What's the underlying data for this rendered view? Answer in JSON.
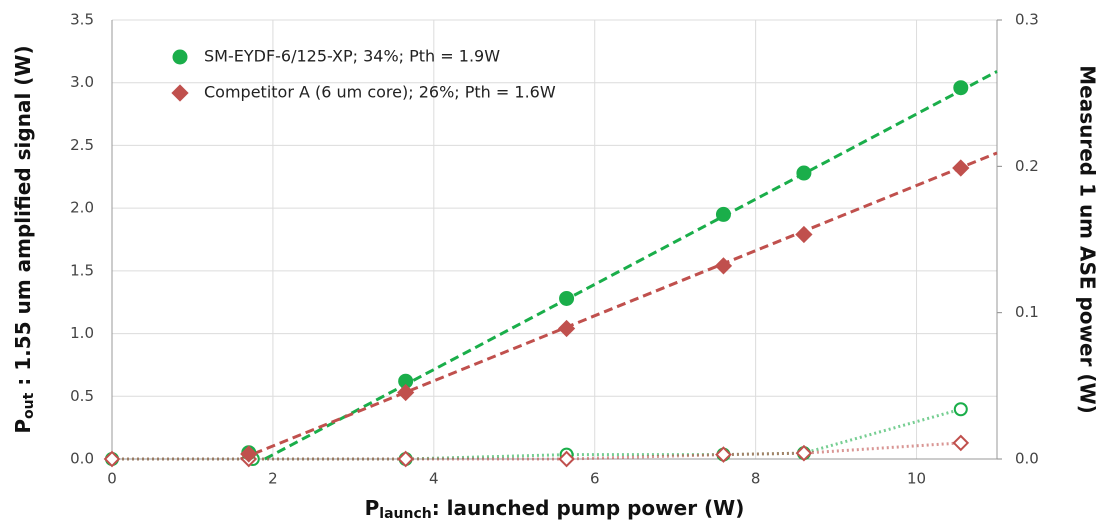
{
  "chart_data": {
    "type": "scatter",
    "xlabel": {
      "main": "P",
      "sub": "launch",
      "rest": ": launched pump power (W)"
    },
    "ylabel": {
      "main": "P",
      "sub": "out",
      "rest": " : 1.55 um amplified signal (W)"
    },
    "y2label": "Measured 1 um ASE power (W)",
    "xlim": [
      0,
      11
    ],
    "xticks": [
      0,
      2,
      4,
      6,
      8,
      10
    ],
    "ylim": [
      0,
      3.5
    ],
    "yticks": [
      {
        "value": 0,
        "label": "0.0"
      },
      0.5,
      {
        "value": 1,
        "label": "1.0"
      },
      1.5,
      {
        "value": 2,
        "label": "2.0"
      },
      2.5,
      {
        "value": 3,
        "label": "3.0"
      },
      3.5
    ],
    "y2lim": [
      0,
      0.3
    ],
    "y2ticks": [
      {
        "value": 0,
        "label": "0.0"
      },
      0.1,
      0.2,
      0.3
    ],
    "grid": true,
    "legend": "top-left",
    "series": [
      {
        "name": "SM-EYDF-6/125-XP; 34%; Pth = 1.9W",
        "color": "#1aae4a",
        "marker": "circle",
        "x": [
          1.7,
          3.65,
          5.65,
          7.6,
          8.6,
          10.55
        ],
        "values": [
          0.05,
          0.62,
          1.28,
          1.95,
          2.28,
          2.96
        ]
      },
      {
        "name": "Competitor A (6 um core); 26%; Pth = 1.6W",
        "color": "#c0504d",
        "marker": "diamond",
        "x": [
          1.7,
          3.65,
          5.65,
          7.6,
          8.6,
          10.55
        ],
        "values": [
          0.04,
          0.53,
          1.04,
          1.54,
          1.79,
          2.32
        ]
      }
    ],
    "trendlines": [
      {
        "color": "#1aae4a",
        "x": [
          1.9,
          11
        ],
        "values": [
          0,
          3.09
        ]
      },
      {
        "color": "#c0504d",
        "x": [
          1.6,
          11
        ],
        "values": [
          0,
          2.44
        ]
      }
    ],
    "ase_series": [
      {
        "color": "#1aae4a",
        "marker": "circle",
        "axis": "y2",
        "x": [
          0,
          1.75,
          3.65,
          5.65,
          7.6,
          8.6,
          10.55
        ],
        "values": [
          0,
          0,
          0,
          0.003,
          0.003,
          0.004,
          0.034
        ]
      },
      {
        "color": "#c0504d",
        "marker": "diamond",
        "axis": "y2",
        "x": [
          0,
          1.7,
          3.65,
          5.65,
          7.6,
          8.6,
          10.55
        ],
        "values": [
          0,
          0,
          0,
          0,
          0.003,
          0.004,
          0.011
        ]
      }
    ]
  }
}
